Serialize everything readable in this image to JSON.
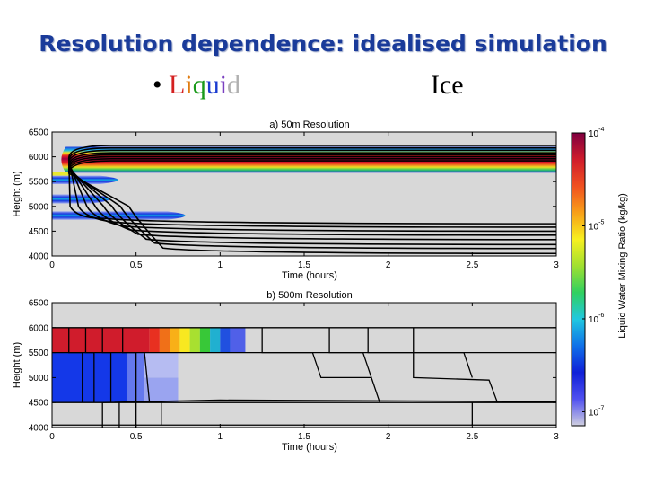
{
  "slide": {
    "title": "Resolution dependence: idealised simulation",
    "bullet_glyph": "•",
    "liquid_letters": [
      "L",
      "i",
      "q",
      "u",
      "i",
      "d"
    ],
    "liquid_colors": [
      "#d42020",
      "#e07b10",
      "#1a9a1a",
      "#1a3bd0",
      "#7a3fc0",
      "#b0b0b0"
    ],
    "ice_label": "Ice"
  },
  "chart_data": [
    {
      "type": "heatmap",
      "title": "a) 50m Resolution",
      "xlabel": "Time (hours)",
      "ylabel": "Height (m)",
      "xlim": [
        0,
        3
      ],
      "ylim": [
        4000,
        6500
      ],
      "xticks": [
        0,
        0.5,
        1,
        1.5,
        2,
        2.5,
        3
      ],
      "xtick_labels": [
        "0",
        "0.5",
        "1",
        "1.5",
        "2",
        "2.5",
        "3"
      ],
      "yticks": [
        4000,
        4500,
        5000,
        5500,
        6000,
        6500
      ],
      "ytick_labels": [
        "4000",
        "4500",
        "5000",
        "5500",
        "6000",
        "6500"
      ],
      "background": "#d8d8d8",
      "bands": [
        {
          "y": [
            5680,
            6200
          ],
          "x": [
            0.05,
            3
          ],
          "peak_y": 5960
        },
        {
          "y": [
            5450,
            5620
          ],
          "x": [
            0,
            0.5
          ],
          "peak_y": 5535
        },
        {
          "y": [
            5060,
            5240
          ],
          "x": [
            0,
            0.45
          ],
          "peak_y": 5150
        },
        {
          "y": [
            4730,
            4900
          ],
          "x": [
            0,
            0.9
          ],
          "peak_y": 4815
        }
      ],
      "contours": [
        {
          "top": 6230,
          "bottom": 4650,
          "plateau_x": 0.15
        },
        {
          "top": 6180,
          "bottom": 4580,
          "plateau_x": 0.2
        },
        {
          "top": 6130,
          "bottom": 4500,
          "plateau_x": 0.25
        },
        {
          "top": 6080,
          "bottom": 4420,
          "plateau_x": 0.3
        },
        {
          "top": 6040,
          "bottom": 4330,
          "plateau_x": 0.35
        },
        {
          "top": 6000,
          "bottom": 4230,
          "plateau_x": 0.4
        },
        {
          "top": 5960,
          "bottom": 4150,
          "plateau_x": 0.45
        },
        {
          "top": 5920,
          "bottom": 4050,
          "plateau_x": 0.5
        }
      ]
    },
    {
      "type": "heatmap",
      "title": "b) 500m Resolution",
      "xlabel": "Time (hours)",
      "ylabel": "Height (m)",
      "xlim": [
        0,
        3
      ],
      "ylim": [
        4000,
        6500
      ],
      "xticks": [
        0,
        0.5,
        1,
        1.5,
        2,
        2.5,
        3
      ],
      "xtick_labels": [
        "0",
        "0.5",
        "1",
        "1.5",
        "2",
        "2.5",
        "3"
      ],
      "yticks": [
        4000,
        4500,
        5000,
        5500,
        6000,
        6500
      ],
      "ytick_labels": [
        "4000",
        "4500",
        "5000",
        "5500",
        "6000",
        "6500"
      ],
      "background": "#d8d8d8",
      "cells": [
        {
          "x": [
            0,
            0.58
          ],
          "y": [
            5500,
            6000
          ],
          "color": "#d01c2c"
        },
        {
          "x": [
            0.58,
            0.64
          ],
          "y": [
            5500,
            6000
          ],
          "color": "#e83020"
        },
        {
          "x": [
            0.64,
            0.7
          ],
          "y": [
            5500,
            6000
          ],
          "color": "#f07018"
        },
        {
          "x": [
            0.7,
            0.76
          ],
          "y": [
            5500,
            6000
          ],
          "color": "#f8b018"
        },
        {
          "x": [
            0.76,
            0.82
          ],
          "y": [
            5500,
            6000
          ],
          "color": "#f8e820"
        },
        {
          "x": [
            0.82,
            0.88
          ],
          "y": [
            5500,
            6000
          ],
          "color": "#a8e030"
        },
        {
          "x": [
            0.88,
            0.94
          ],
          "y": [
            5500,
            6000
          ],
          "color": "#38c838"
        },
        {
          "x": [
            0.94,
            1.0
          ],
          "y": [
            5500,
            6000
          ],
          "color": "#20b0d0"
        },
        {
          "x": [
            1.0,
            1.06
          ],
          "y": [
            5500,
            6000
          ],
          "color": "#2050e0"
        },
        {
          "x": [
            1.06,
            1.15
          ],
          "y": [
            5500,
            6000
          ],
          "color": "#5060e8"
        },
        {
          "x": [
            0,
            0.45
          ],
          "y": [
            4500,
            5500
          ],
          "color": "#1438e8"
        },
        {
          "x": [
            0.45,
            0.55
          ],
          "y": [
            4500,
            5500
          ],
          "color": "#6478ee"
        },
        {
          "x": [
            0.55,
            0.75
          ],
          "y": [
            4500,
            5000
          ],
          "color": "#9aa4f0"
        },
        {
          "x": [
            0.55,
            0.75
          ],
          "y": [
            5000,
            5500
          ],
          "color": "#b6bcf2"
        }
      ],
      "contours_vertical": [
        [
          [
            0.1,
            6000
          ],
          [
            0.1,
            5500
          ],
          [
            0.18,
            5500
          ],
          [
            0.18,
            4500
          ]
        ],
        [
          [
            0.2,
            6000
          ],
          [
            0.2,
            5500
          ],
          [
            0.25,
            5500
          ],
          [
            0.25,
            4500
          ]
        ],
        [
          [
            0.3,
            6000
          ],
          [
            0.3,
            5500
          ],
          [
            0.35,
            5500
          ],
          [
            0.35,
            4500
          ]
        ],
        [
          [
            0.42,
            6000
          ],
          [
            0.42,
            5500
          ],
          [
            0.5,
            5500
          ],
          [
            0.5,
            4500
          ]
        ],
        [
          [
            0.55,
            5500
          ],
          [
            0.58,
            4500
          ]
        ],
        [
          [
            1.25,
            6000
          ],
          [
            1.25,
            5500
          ],
          [
            1.55,
            5500
          ],
          [
            1.6,
            5000
          ],
          [
            1.9,
            5000
          ],
          [
            1.95,
            4500
          ]
        ],
        [
          [
            1.65,
            6000
          ],
          [
            1.65,
            5500
          ],
          [
            1.85,
            5500
          ],
          [
            1.9,
            5000
          ]
        ],
        [
          [
            1.88,
            6000
          ],
          [
            1.88,
            5500
          ],
          [
            2.15,
            5500
          ],
          [
            2.15,
            5000
          ],
          [
            2.6,
            4950
          ],
          [
            2.65,
            4500
          ]
        ],
        [
          [
            2.15,
            6000
          ],
          [
            2.15,
            5500
          ],
          [
            2.45,
            5500
          ],
          [
            2.5,
            5000
          ]
        ],
        [
          [
            0.3,
            4500
          ],
          [
            0.3,
            4000
          ]
        ],
        [
          [
            0.4,
            4500
          ],
          [
            0.4,
            4000
          ]
        ],
        [
          [
            0.5,
            4500
          ],
          [
            0.5,
            4000
          ]
        ],
        [
          [
            0.65,
            4500
          ],
          [
            0.65,
            4050
          ]
        ],
        [
          [
            2.5,
            4500
          ],
          [
            2.5,
            4050
          ]
        ]
      ],
      "contours_horizontal": [
        [
          [
            0,
            6000
          ],
          [
            3,
            6000
          ]
        ],
        [
          [
            0,
            5500
          ],
          [
            3,
            5500
          ]
        ],
        [
          [
            0,
            4500
          ],
          [
            3,
            4500
          ]
        ],
        [
          [
            0.3,
            4500
          ],
          [
            1.0,
            4550
          ],
          [
            3,
            4520
          ]
        ],
        [
          [
            0,
            4050
          ],
          [
            3,
            4050
          ]
        ]
      ]
    }
  ],
  "colorbar": {
    "label": "Liquid Water Mixing Ratio (kg/kg)",
    "tick_bases": [
      "10",
      "10",
      "10",
      "10"
    ],
    "tick_exponents": [
      "-4",
      "-5",
      "-6",
      "-7"
    ],
    "log_values": [
      -4,
      -5,
      -6,
      -7
    ],
    "stops": [
      "#d0d0e0",
      "#5050f0",
      "#1020d8",
      "#1070e8",
      "#20c8e0",
      "#30d060",
      "#a0e030",
      "#f8f020",
      "#f8a018",
      "#f05020",
      "#d01c2c",
      "#800040"
    ]
  }
}
